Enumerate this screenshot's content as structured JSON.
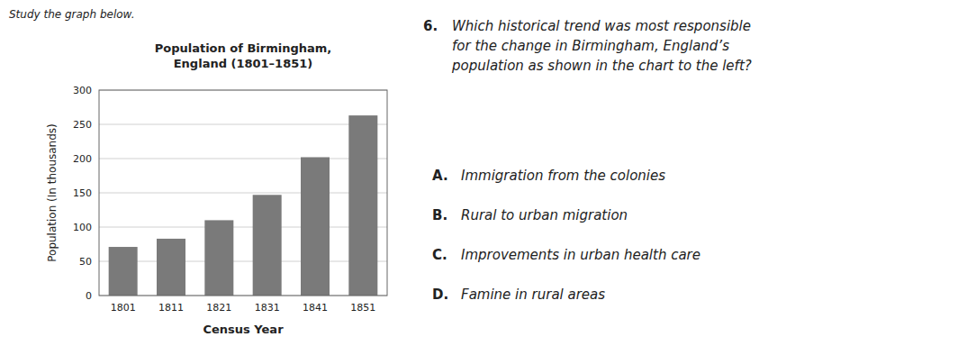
{
  "chart_data": {
    "type": "bar",
    "title": "Population of Birmingham,\nEngland (1801–1851)",
    "xlabel": "Census Year",
    "ylabel": "Population (In thousands)",
    "categories": [
      "1801",
      "1811",
      "1821",
      "1831",
      "1841",
      "1851"
    ],
    "values": [
      71,
      83,
      110,
      147,
      202,
      263
    ],
    "color": "#7a7a7a",
    "ylim": [
      0,
      300
    ],
    "yticks": [
      0,
      50,
      100,
      150,
      200,
      250,
      300
    ],
    "grid": true,
    "annotations": [
      "Study the graph below.",
      "6.",
      "Which historical trend was most responsible\nfor the change in Birmingham, England’s\npopulation as shown in the chart to the left?",
      "A.",
      "Immigration from the colonies",
      "B.",
      "Rural to urban migration",
      "C.",
      "Improvements in urban health care",
      "D.",
      "Famine in rural areas"
    ]
  }
}
